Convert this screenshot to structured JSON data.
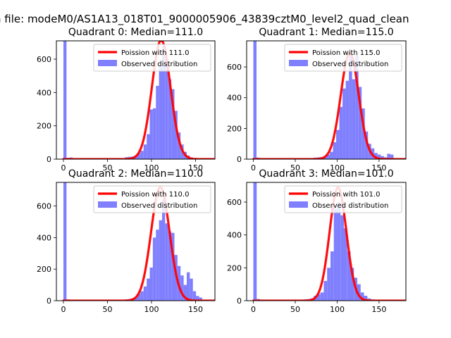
{
  "figure": {
    "suptitle": "n file: modeM0/AS1A13_018T01_9000005906_43839cztM0_level2_quad_clean"
  },
  "colors": {
    "histogram": "#8080ff",
    "poisson": "#ff0000"
  },
  "chart_data": [
    {
      "type": "bar",
      "title": "Quadrant 0: Median=111.0",
      "legend": [
        "Poission with 111.0",
        "Observed distribution"
      ],
      "legend_position": "upper-right",
      "xlim": [
        -8,
        172
      ],
      "ylim": [
        0,
        710
      ],
      "xticks": [
        0,
        50,
        100,
        150
      ],
      "yticks": [
        0,
        200,
        400,
        600
      ],
      "poisson_mean": 111.0,
      "poisson_peak": 715,
      "bin_width": 3.5,
      "bins": [
        [
          0,
          760
        ],
        [
          3.5,
          8
        ],
        [
          7,
          10
        ],
        [
          10.5,
          3
        ],
        [
          14,
          2
        ],
        [
          17.5,
          1
        ],
        [
          21,
          1
        ],
        [
          28,
          2
        ],
        [
          42,
          1
        ],
        [
          56,
          2
        ],
        [
          63,
          3
        ],
        [
          70,
          12
        ],
        [
          73.5,
          14
        ],
        [
          77,
          16
        ],
        [
          80.5,
          22
        ],
        [
          84,
          36
        ],
        [
          87.5,
          50
        ],
        [
          91,
          88
        ],
        [
          94.5,
          150
        ],
        [
          98,
          298
        ],
        [
          101.5,
          305
        ],
        [
          105,
          440
        ],
        [
          108.5,
          560
        ],
        [
          112,
          680
        ],
        [
          115.5,
          600
        ],
        [
          119,
          480
        ],
        [
          122.5,
          420
        ],
        [
          126,
          290
        ],
        [
          129.5,
          160
        ],
        [
          133,
          88
        ],
        [
          136.5,
          44
        ],
        [
          140,
          22
        ],
        [
          143.5,
          10
        ],
        [
          147,
          4
        ],
        [
          150.5,
          2
        ],
        [
          154,
          1
        ],
        [
          157.5,
          1
        ],
        [
          161,
          1
        ]
      ]
    },
    {
      "type": "bar",
      "title": "Quadrant 1: Median=115.0",
      "legend": [
        "Poission with 115.0",
        "Observed distribution"
      ],
      "legend_position": "upper-right",
      "xlim": [
        -8,
        182
      ],
      "ylim": [
        0,
        770
      ],
      "xticks": [
        0,
        50,
        100,
        150
      ],
      "yticks": [
        0,
        200,
        400,
        600
      ],
      "poisson_mean": 115.0,
      "poisson_peak": 690,
      "bin_width": 3.8,
      "bins": [
        [
          0,
          770
        ],
        [
          3.8,
          10
        ],
        [
          7.6,
          3
        ],
        [
          30,
          1
        ],
        [
          53,
          2
        ],
        [
          68,
          3
        ],
        [
          72,
          10
        ],
        [
          76,
          12
        ],
        [
          79.8,
          14
        ],
        [
          83.6,
          20
        ],
        [
          87.4,
          30
        ],
        [
          91.2,
          48
        ],
        [
          95,
          110
        ],
        [
          98.8,
          190
        ],
        [
          102.6,
          340
        ],
        [
          106.4,
          460
        ],
        [
          110.2,
          510
        ],
        [
          114,
          690
        ],
        [
          117.8,
          520
        ],
        [
          121.6,
          680
        ],
        [
          125.4,
          470
        ],
        [
          129.2,
          330
        ],
        [
          133,
          180
        ],
        [
          136.8,
          100
        ],
        [
          140.6,
          70
        ],
        [
          144.4,
          40
        ],
        [
          148.2,
          30
        ],
        [
          152,
          20
        ],
        [
          155.8,
          12
        ],
        [
          159.6,
          35
        ],
        [
          163.4,
          30
        ],
        [
          167.2,
          5
        ]
      ]
    },
    {
      "type": "bar",
      "title": "Quadrant 2: Median=110.0",
      "legend": [
        "Poission with 110.0",
        "Observed distribution"
      ],
      "legend_position": "upper-right",
      "xlim": [
        -8,
        172
      ],
      "ylim": [
        0,
        750
      ],
      "xticks": [
        0,
        50,
        100,
        150
      ],
      "yticks": [
        0,
        200,
        400,
        600
      ],
      "poisson_mean": 110.0,
      "poisson_peak": 720,
      "bin_width": 3.5,
      "bins": [
        [
          0,
          750
        ],
        [
          3.5,
          8
        ],
        [
          7,
          4
        ],
        [
          63,
          2
        ],
        [
          70,
          8
        ],
        [
          73.5,
          10
        ],
        [
          77,
          14
        ],
        [
          80.5,
          20
        ],
        [
          84,
          44
        ],
        [
          87.5,
          60
        ],
        [
          91,
          90
        ],
        [
          94.5,
          140
        ],
        [
          98,
          210
        ],
        [
          101.5,
          400
        ],
        [
          105,
          450
        ],
        [
          108.5,
          510
        ],
        [
          112,
          640
        ],
        [
          115.5,
          490
        ],
        [
          119,
          440
        ],
        [
          122.5,
          430
        ],
        [
          126,
          290
        ],
        [
          129.5,
          220
        ],
        [
          133,
          160
        ],
        [
          136.5,
          100
        ],
        [
          140,
          180
        ],
        [
          143.5,
          140
        ],
        [
          147,
          60
        ],
        [
          150.5,
          30
        ],
        [
          154,
          20
        ],
        [
          157.5,
          5
        ],
        [
          161,
          3
        ]
      ]
    },
    {
      "type": "bar",
      "title": "Quadrant 3: Median=101.0",
      "legend": [
        "Poission with 101.0",
        "Observed distribution"
      ],
      "legend_position": "upper-right",
      "xlim": [
        -8,
        182
      ],
      "ylim": [
        0,
        720
      ],
      "xticks": [
        0,
        50,
        100,
        150
      ],
      "yticks": [
        0,
        200,
        400,
        600
      ],
      "poisson_mean": 101.0,
      "poisson_peak": 690,
      "bin_width": 4.0,
      "bins": [
        [
          0,
          720
        ],
        [
          4,
          10
        ],
        [
          8,
          4
        ],
        [
          40,
          1
        ],
        [
          56,
          3
        ],
        [
          60,
          8
        ],
        [
          64,
          10
        ],
        [
          68,
          14
        ],
        [
          72,
          30
        ],
        [
          76,
          40
        ],
        [
          80,
          50
        ],
        [
          84,
          120
        ],
        [
          88,
          200
        ],
        [
          92,
          300
        ],
        [
          96,
          560
        ],
        [
          100,
          600
        ],
        [
          104,
          520
        ],
        [
          108,
          440
        ],
        [
          112,
          300
        ],
        [
          116,
          200
        ],
        [
          120,
          140
        ],
        [
          124,
          100
        ],
        [
          128,
          50
        ],
        [
          132,
          30
        ],
        [
          136,
          14
        ],
        [
          140,
          8
        ],
        [
          144,
          5
        ]
      ]
    }
  ]
}
